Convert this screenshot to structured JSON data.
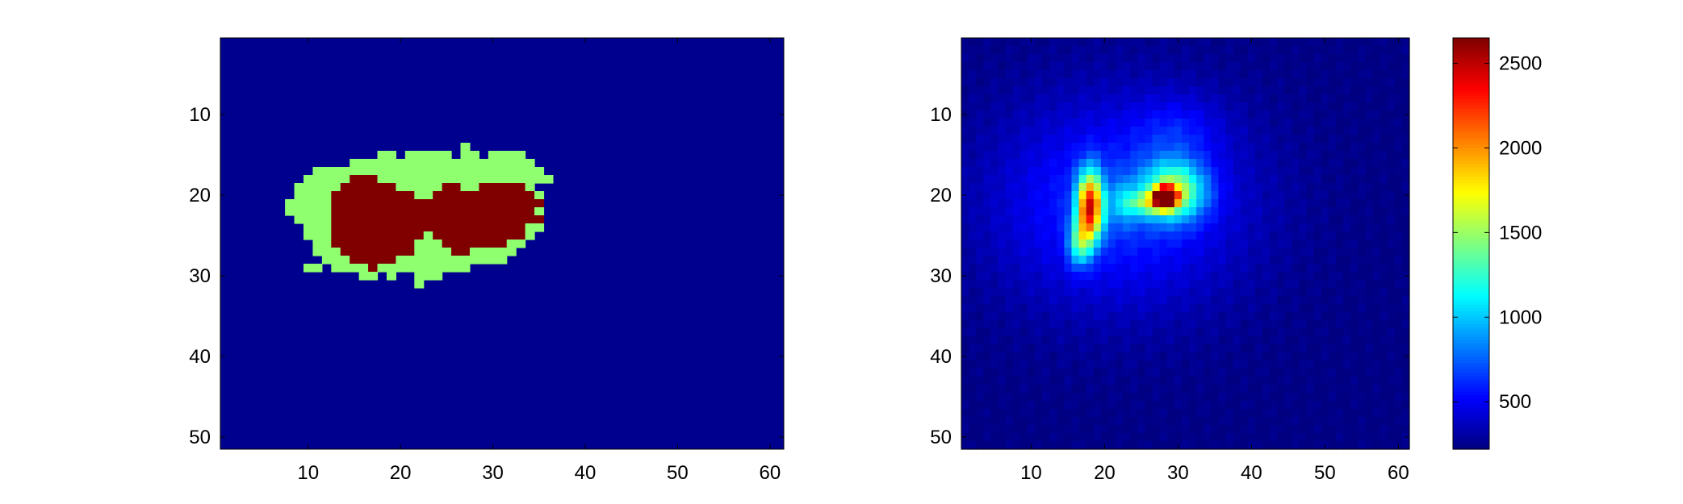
{
  "chart_data": [
    {
      "type": "heatmap",
      "title": "",
      "xlabel": "",
      "ylabel": "",
      "grid": false,
      "xlim": [
        0.5,
        61.5
      ],
      "ylim": [
        51.5,
        0.5
      ],
      "xticks": [
        "10",
        "20",
        "30",
        "40",
        "50",
        "60"
      ],
      "yticks": [
        "10",
        "20",
        "30",
        "40",
        "50"
      ],
      "colormap": "jet",
      "legend": "none",
      "mask_rows": [
        "",
        "..........................G.........",
        ".................GG.GGGGG.GG.GGGG...",
        "..............GGGGGGGGGGGGGGGGGGGG..",
        "..........GGGGGGGGGGGGGGGGGGGGGGGGG.",
        ".........GGGGGRRRGGGGGGGGGGGGGGGGGGG",
        "........GGGGGRRRRRRGGGGGRRGGRRRRRG..",
        "........GGGGRRRRRRRRRGGRRRRRRRRRRRG.",
        ".......GGGGGRRRRRRRRRRRRRRRRRRRRRRR.",
        ".......GGGGGRRRRRRRRRRRRRRRRRRRRRRG.",
        "........GGGGRRRRRRRRRRRRRRRRRRRRRRR.",
        ".........GGGRRRRRRRRRRRRRRRRRRRRRGG.",
        ".........GGGRRRRRRRRRRGRRRRRRRRRRG..",
        "..........GGRRRRRRRRRGGGRRRRRRRGG...",
        "..........GGGRRRRRRRRGGGGRRGGGGG....",
        "...........GGGRRRRRGGGGGGGGGGGG.....",
        ".........GG.GGGGRGGGGGGGGGG.........",
        "...............GG.G..GGG............",
        ".....................G.............."
      ],
      "mask_origin": {
        "row": 12,
        "col": 0
      },
      "mask_colors": {
        "background": "#00008f",
        "G": "#8fff70",
        "R": "#800000"
      }
    },
    {
      "type": "heatmap",
      "title": "",
      "xlabel": "",
      "ylabel": "",
      "grid": false,
      "xlim": [
        0.5,
        61.5
      ],
      "ylim": [
        51.5,
        0.5
      ],
      "xticks": [
        "10",
        "20",
        "30",
        "40",
        "50",
        "60"
      ],
      "yticks": [
        "10",
        "20",
        "30",
        "40",
        "50"
      ],
      "colormap": "jet",
      "clim": [
        220,
        2650
      ],
      "colorbar_ticks": [
        "500",
        "1000",
        "1500",
        "2000",
        "2500"
      ],
      "baseline": 230,
      "hotspots": [
        {
          "x": 18.0,
          "y": 21.5,
          "peak": 1850,
          "sx": 1.2,
          "sy": 3.0
        },
        {
          "x": 16.5,
          "y": 26.0,
          "peak": 700,
          "sx": 1.0,
          "sy": 2.0
        },
        {
          "x": 28.3,
          "y": 20.3,
          "peak": 2600,
          "sx": 1.0,
          "sy": 0.85
        },
        {
          "x": 29.5,
          "y": 19.5,
          "peak": 1050,
          "sx": 3.0,
          "sy": 2.5
        },
        {
          "x": 26.0,
          "y": 21.0,
          "peak": 600,
          "sx": 2.0,
          "sy": 1.0
        },
        {
          "x": 22.5,
          "y": 21.0,
          "peak": 320,
          "sx": 1.5,
          "sy": 2.0
        },
        {
          "x": 22.0,
          "y": 21.0,
          "peak": 420,
          "sx": 12.0,
          "sy": 9.0
        },
        {
          "x": 30.0,
          "y": 12.0,
          "peak": 180,
          "sx": 4.0,
          "sy": 3.0
        }
      ]
    }
  ]
}
